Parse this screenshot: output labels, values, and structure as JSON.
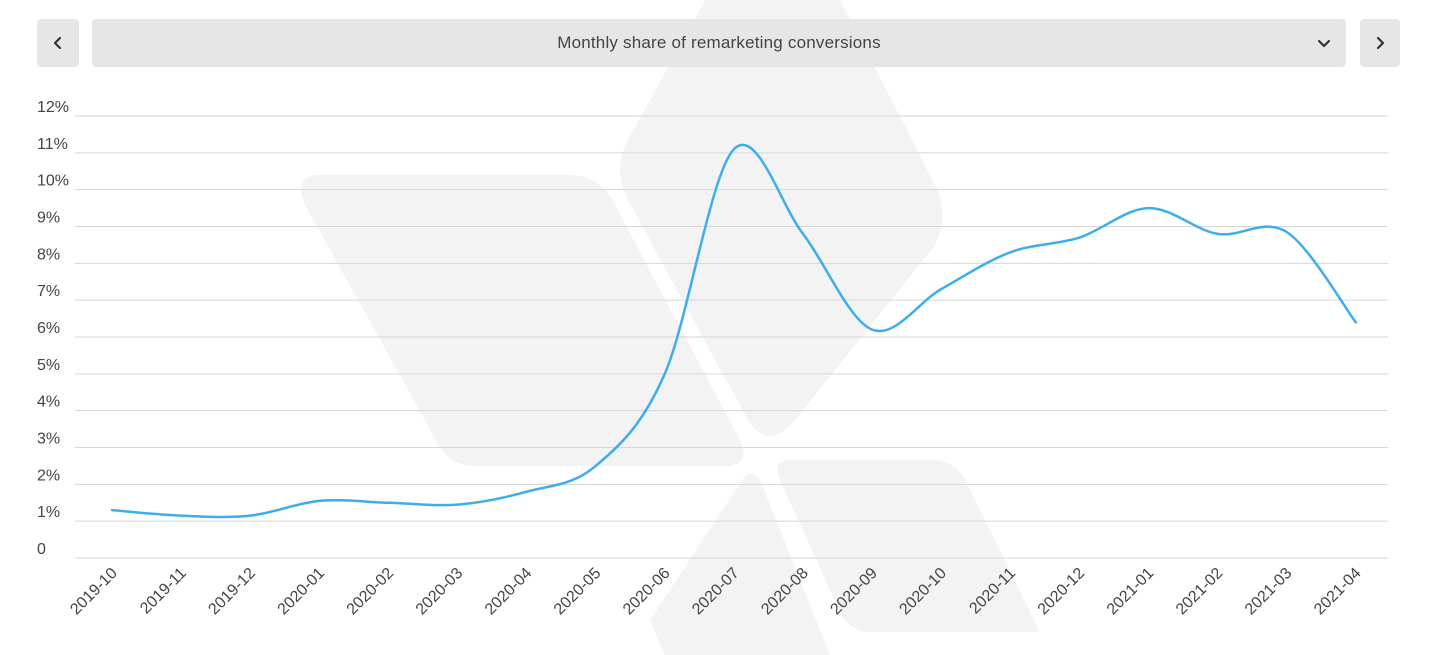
{
  "selector": {
    "label": "Monthly share of remarketing conversions"
  },
  "icons": {
    "prev": "chevron-left-icon",
    "next": "chevron-right-icon",
    "dropdown": "chevron-down-icon"
  },
  "colors": {
    "line": "#3daee9",
    "grid": "#d6d6d6",
    "button_bg": "#e6e6e6",
    "watermark": "#f3f3f3"
  },
  "chart_data": {
    "type": "line",
    "title": "Monthly share of remarketing conversions",
    "xlabel": "",
    "ylabel": "",
    "x": [
      "2019-10",
      "2019-11",
      "2019-12",
      "2020-01",
      "2020-02",
      "2020-03",
      "2020-04",
      "2020-05",
      "2020-06",
      "2020-07",
      "2020-08",
      "2020-09",
      "2020-10",
      "2020-11",
      "2020-12",
      "2021-01",
      "2021-02",
      "2021-03",
      "2021-04"
    ],
    "series": [
      {
        "name": "Share of remarketing conversions",
        "values": [
          1.3,
          1.15,
          1.15,
          1.55,
          1.5,
          1.45,
          1.8,
          2.5,
          5.0,
          11.1,
          8.8,
          6.2,
          7.3,
          8.3,
          8.7,
          9.5,
          8.8,
          8.85,
          6.4
        ]
      }
    ],
    "ylim": [
      0,
      12
    ],
    "y_ticks": [
      "0",
      "1%",
      "2%",
      "3%",
      "4%",
      "5%",
      "6%",
      "7%",
      "8%",
      "9%",
      "10%",
      "11%",
      "12%"
    ],
    "grid": true,
    "legend": "none"
  }
}
